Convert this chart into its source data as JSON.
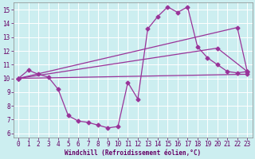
{
  "xlabel": "Windchill (Refroidissement éolien,°C)",
  "bg_color": "#cceef0",
  "line_color": "#993399",
  "grid_color": "#aadddd",
  "xlim": [
    -0.5,
    23.5
  ],
  "ylim": [
    5.7,
    15.5
  ],
  "yticks": [
    6,
    7,
    8,
    9,
    10,
    11,
    12,
    13,
    14,
    15
  ],
  "xticks": [
    0,
    1,
    2,
    3,
    4,
    5,
    6,
    7,
    8,
    9,
    10,
    11,
    12,
    13,
    14,
    15,
    16,
    17,
    18,
    19,
    20,
    21,
    22,
    23
  ],
  "line1_x": [
    0,
    1,
    2,
    3,
    4,
    5,
    6,
    7,
    8,
    9,
    10,
    11,
    12,
    13,
    14,
    15,
    16,
    17,
    18,
    19,
    20,
    21,
    22,
    23
  ],
  "line1_y": [
    10.0,
    10.6,
    10.3,
    10.1,
    9.2,
    7.3,
    6.9,
    6.8,
    6.6,
    6.4,
    6.5,
    9.7,
    8.5,
    13.6,
    14.5,
    15.2,
    14.8,
    15.2,
    12.3,
    11.5,
    11.0,
    10.5,
    10.4,
    10.5
  ],
  "line2_x": [
    0,
    22,
    23
  ],
  "line2_y": [
    10.0,
    13.7,
    10.5
  ],
  "line3_x": [
    0,
    20,
    23
  ],
  "line3_y": [
    10.0,
    12.2,
    10.5
  ],
  "flat_line_x": [
    0,
    23
  ],
  "flat_line_y": [
    10.0,
    10.3
  ]
}
